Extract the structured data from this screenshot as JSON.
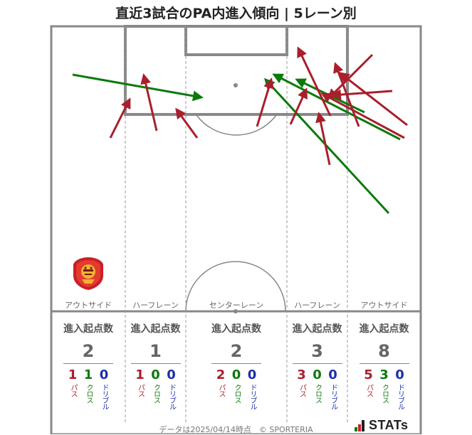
{
  "title": "直近3試合のPA内進入傾向 | 5レーン別",
  "footer": "データは2025/04/14時点　© SPORTERIA",
  "brand": "STATs",
  "colors": {
    "pass": "#a91f2b",
    "cross": "#0b7a0b",
    "dribble": "#1c2fa8",
    "lines": "#888888"
  },
  "lanes": [
    {
      "name": "アウトサイド"
    },
    {
      "name": "ハーフレーン"
    },
    {
      "name": "センターレーン"
    },
    {
      "name": "ハーフレーン"
    },
    {
      "name": "アウトサイド"
    }
  ],
  "stats_label": "進入起点数",
  "breakdown_labels": {
    "pass": "パス",
    "cross": "クロス",
    "dribble": "ドリブル"
  },
  "chart_data": {
    "type": "table",
    "title": "直近3試合のPA内進入傾向 | 5レーン別",
    "columns": [
      {
        "lane": "アウトサイド",
        "total": "2",
        "pass": "1",
        "cross": "1",
        "dribble": "0"
      },
      {
        "lane": "ハーフレーン",
        "total": "1",
        "pass": "1",
        "cross": "0",
        "dribble": "0"
      },
      {
        "lane": "センターレーン",
        "total": "2",
        "pass": "2",
        "cross": "0",
        "dribble": "0"
      },
      {
        "lane": "ハーフレーン",
        "total": "3",
        "pass": "3",
        "cross": "0",
        "dribble": "0"
      },
      {
        "lane": "アウトサイド",
        "total": "8",
        "pass": "5",
        "cross": "3",
        "dribble": "0"
      }
    ]
  }
}
